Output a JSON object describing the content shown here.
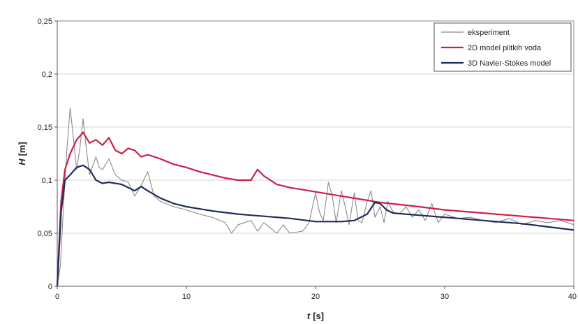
{
  "chart_data": {
    "type": "line",
    "title": "",
    "xlabel": "t",
    "xunit": "[s]",
    "ylabel": "H",
    "yunit": "[m]",
    "xlim": [
      0,
      40
    ],
    "ylim": [
      0,
      0.25
    ],
    "xticks": [
      0,
      10,
      20,
      30,
      40
    ],
    "xtick_labels": [
      "0",
      "10",
      "20",
      "30",
      "40"
    ],
    "yticks": [
      0,
      0.05,
      0.1,
      0.15,
      0.2,
      0.25
    ],
    "ytick_labels": [
      "0",
      "0,05",
      "0,1",
      "0,15",
      "0,2",
      "0,25"
    ],
    "grid": "horizontal",
    "legend_position": "top-right",
    "series": [
      {
        "name": "eksperiment",
        "color": "#8a8a8a",
        "style": "thin",
        "x": [
          0,
          0.25,
          0.5,
          0.75,
          1.0,
          1.25,
          1.5,
          1.75,
          2.0,
          2.25,
          2.5,
          3.0,
          3.25,
          3.5,
          4.0,
          4.5,
          5.0,
          5.5,
          6.0,
          6.5,
          7.0,
          7.5,
          8.0,
          9.0,
          10.0,
          11.0,
          12.0,
          13.0,
          13.5,
          14.0,
          15.0,
          15.5,
          16.0,
          17.0,
          17.5,
          18.0,
          19.0,
          19.5,
          20.0,
          20.3,
          20.6,
          21.0,
          21.3,
          21.6,
          22.0,
          22.3,
          22.6,
          23.0,
          23.3,
          23.6,
          24.0,
          24.3,
          24.6,
          25.0,
          25.3,
          25.6,
          26.0,
          26.5,
          27.0,
          27.5,
          28.0,
          28.5,
          29.0,
          29.5,
          30.0,
          31.0,
          32.0,
          33.0,
          34.0,
          35.0,
          36.0,
          37.0,
          38.0,
          39.0,
          40.0
        ],
        "values": [
          0,
          0.02,
          0.08,
          0.13,
          0.168,
          0.14,
          0.11,
          0.13,
          0.158,
          0.13,
          0.105,
          0.122,
          0.112,
          0.11,
          0.12,
          0.105,
          0.1,
          0.098,
          0.085,
          0.095,
          0.108,
          0.085,
          0.08,
          0.075,
          0.072,
          0.068,
          0.065,
          0.06,
          0.05,
          0.058,
          0.062,
          0.052,
          0.06,
          0.05,
          0.058,
          0.05,
          0.052,
          0.06,
          0.088,
          0.07,
          0.062,
          0.098,
          0.085,
          0.06,
          0.09,
          0.075,
          0.058,
          0.088,
          0.062,
          0.06,
          0.08,
          0.09,
          0.065,
          0.075,
          0.06,
          0.08,
          0.07,
          0.068,
          0.075,
          0.065,
          0.072,
          0.062,
          0.078,
          0.06,
          0.068,
          0.064,
          0.065,
          0.062,
          0.06,
          0.064,
          0.058,
          0.062,
          0.06,
          0.062,
          0.058
        ]
      },
      {
        "name": "2D model plitkih voda",
        "color": "#cc1f47",
        "style": "thick",
        "x": [
          0,
          0.3,
          0.6,
          1.0,
          1.5,
          2.0,
          2.5,
          3.0,
          3.5,
          4.0,
          4.5,
          5.0,
          5.5,
          6.0,
          6.5,
          7.0,
          8.0,
          9.0,
          10.0,
          11.0,
          12.0,
          13.0,
          14.0,
          15.0,
          15.5,
          16.0,
          16.5,
          17.0,
          18.0,
          20.0,
          22.0,
          25.0,
          28.0,
          30.0,
          33.0,
          35.0,
          38.0,
          40.0
        ],
        "values": [
          0,
          0.08,
          0.11,
          0.125,
          0.138,
          0.145,
          0.135,
          0.138,
          0.133,
          0.14,
          0.128,
          0.125,
          0.13,
          0.128,
          0.122,
          0.124,
          0.12,
          0.115,
          0.112,
          0.108,
          0.105,
          0.102,
          0.1,
          0.1,
          0.11,
          0.104,
          0.1,
          0.096,
          0.093,
          0.089,
          0.085,
          0.079,
          0.075,
          0.072,
          0.069,
          0.067,
          0.064,
          0.062
        ]
      },
      {
        "name": "3D Navier-Stokes model",
        "color": "#1f2d5a",
        "style": "thick",
        "x": [
          0,
          0.3,
          0.6,
          1.0,
          1.5,
          2.0,
          2.5,
          3.0,
          3.5,
          4.0,
          5.0,
          6.0,
          6.5,
          7.0,
          8.0,
          9.0,
          10.0,
          12.0,
          14.0,
          15.0,
          16.0,
          18.0,
          20.0,
          22.0,
          23.0,
          24.0,
          24.6,
          25.0,
          25.5,
          26.0,
          28.0,
          30.0,
          33.0,
          36.0,
          38.0,
          40.0
        ],
        "values": [
          0,
          0.07,
          0.1,
          0.105,
          0.112,
          0.114,
          0.11,
          0.1,
          0.097,
          0.098,
          0.096,
          0.09,
          0.094,
          0.09,
          0.083,
          0.078,
          0.075,
          0.071,
          0.068,
          0.067,
          0.066,
          0.064,
          0.061,
          0.061,
          0.062,
          0.068,
          0.079,
          0.078,
          0.072,
          0.069,
          0.067,
          0.065,
          0.062,
          0.059,
          0.056,
          0.053
        ]
      }
    ]
  }
}
